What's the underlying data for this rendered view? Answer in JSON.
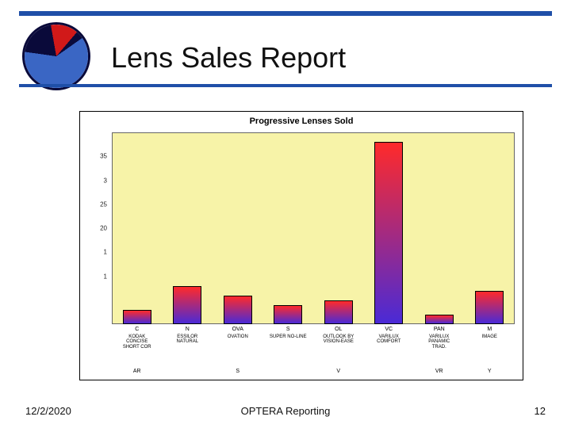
{
  "slide": {
    "title": "Lens Sales Report",
    "accent_color": "#1f4fa8"
  },
  "pie": {
    "border_color": "#0a0a3a",
    "slices": [
      {
        "color": "#d11919",
        "pct": 14
      },
      {
        "color": "#0a0a3a",
        "pct": 4
      },
      {
        "color": "#3a66c4",
        "pct": 62
      },
      {
        "color": "#0a0a3a",
        "pct": 20
      }
    ]
  },
  "chart": {
    "type": "bar",
    "title": "Progressive Lenses Sold",
    "title_fontsize": 11,
    "background_color": "#f7f3a8",
    "bar_gradient_top": "#ff2a2a",
    "bar_gradient_bottom": "#4a2ad6",
    "bar_border": "#000000",
    "bar_width": 0.56,
    "ylim": [
      0,
      40
    ],
    "yticks": [
      0,
      5,
      10,
      15,
      20,
      25,
      30,
      35,
      40
    ],
    "ytick_labels": [
      "",
      "",
      "1",
      "1",
      "20",
      "25",
      "3",
      "35",
      ""
    ],
    "categories": [
      {
        "code": "C",
        "name": "KODAK\nCONCISE\nSHORT COR",
        "group": "AR",
        "value": 3
      },
      {
        "code": "N",
        "name": "ESSILOR\nNATURAL",
        "group": "",
        "value": 8
      },
      {
        "code": "OVA",
        "name": "OVATION",
        "group": "S",
        "value": 6
      },
      {
        "code": "S",
        "name": "SUPER NO-LINE",
        "group": "",
        "value": 4
      },
      {
        "code": "OL",
        "name": "OUTLOOK BY\nVISION-EASE",
        "group": "V",
        "value": 5
      },
      {
        "code": "VC",
        "name": "VARILUX\nCOMFORT",
        "group": "",
        "value": 38
      },
      {
        "code": "PAN",
        "name": "VARILUX\nPANAMIC\nTRAD.",
        "group": "VR",
        "value": 2
      },
      {
        "code": "M",
        "name": "IMAGE",
        "group": "Y",
        "value": 7
      }
    ]
  },
  "footer": {
    "date": "12/2/2020",
    "center": "OPTERA Reporting",
    "page": "12"
  }
}
